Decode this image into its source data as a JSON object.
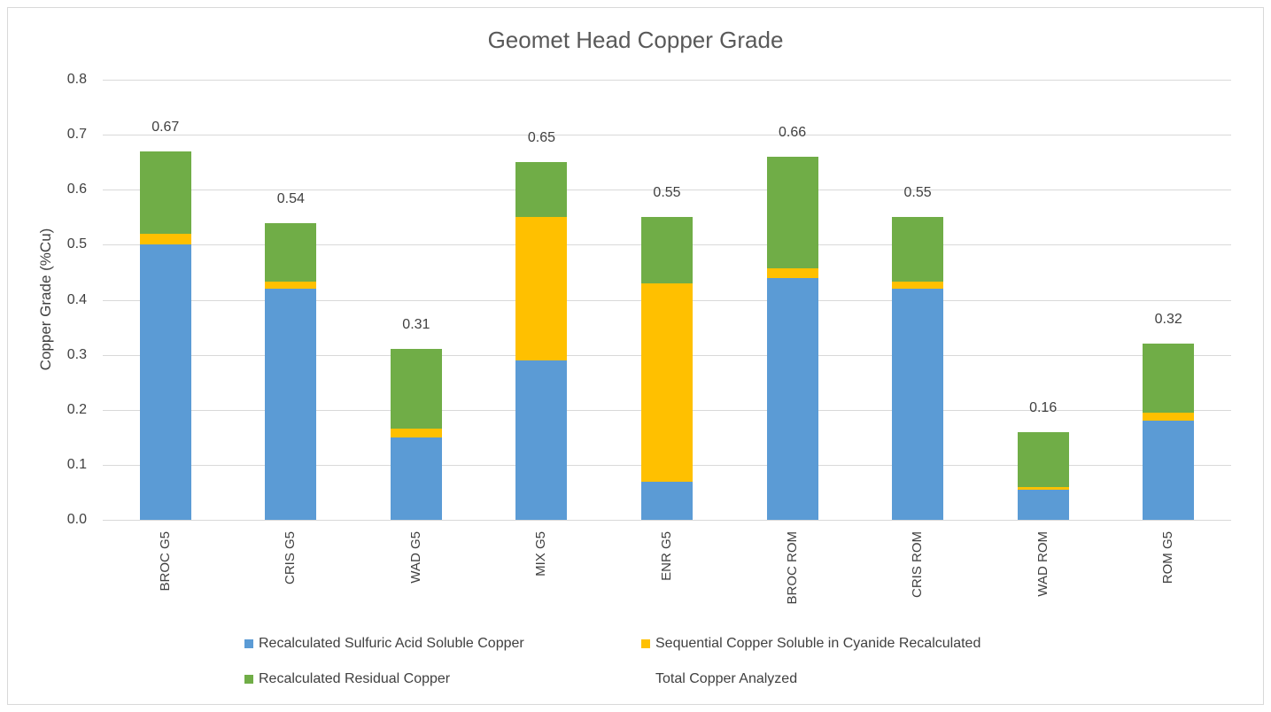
{
  "chart_data": {
    "type": "bar",
    "stacked": true,
    "title": "Geomet Head Copper Grade",
    "xlabel": "",
    "ylabel": "Copper Grade (%Cu)",
    "ylim": [
      0,
      0.8
    ],
    "yticks": [
      "0.0",
      "0.1",
      "0.2",
      "0.3",
      "0.4",
      "0.5",
      "0.6",
      "0.7",
      "0.8"
    ],
    "grid": true,
    "legend_position": "bottom",
    "categories": [
      "BROC G5",
      "CRIS G5",
      "WAD G5",
      "MIX G5",
      "ENR G5",
      "BROC ROM",
      "CRIS ROM",
      "WAD ROM",
      "ROM G5"
    ],
    "series": [
      {
        "name": "Recalculated Sulfuric Acid Soluble Copper",
        "color": "#5b9bd5",
        "values": [
          0.5,
          0.42,
          0.15,
          0.29,
          0.07,
          0.44,
          0.42,
          0.055,
          0.18
        ]
      },
      {
        "name": "Sequential Copper Soluble in Cyanide Recalculated",
        "color": "#ffc000",
        "values": [
          0.02,
          0.013,
          0.016,
          0.26,
          0.36,
          0.017,
          0.013,
          0.005,
          0.015
        ]
      },
      {
        "name": "Recalculated Residual Copper",
        "color": "#70ad47",
        "values": [
          0.15,
          0.107,
          0.144,
          0.1,
          0.12,
          0.203,
          0.117,
          0.1,
          0.125
        ]
      },
      {
        "name": "Total Copper Analyzed",
        "color": "none",
        "values": [
          0.67,
          0.54,
          0.31,
          0.65,
          0.55,
          0.66,
          0.55,
          0.16,
          0.32
        ]
      }
    ],
    "data_labels": [
      "0.67",
      "0.54",
      "0.31",
      "0.65",
      "0.55",
      "0.66",
      "0.55",
      "0.16",
      "0.32"
    ]
  }
}
